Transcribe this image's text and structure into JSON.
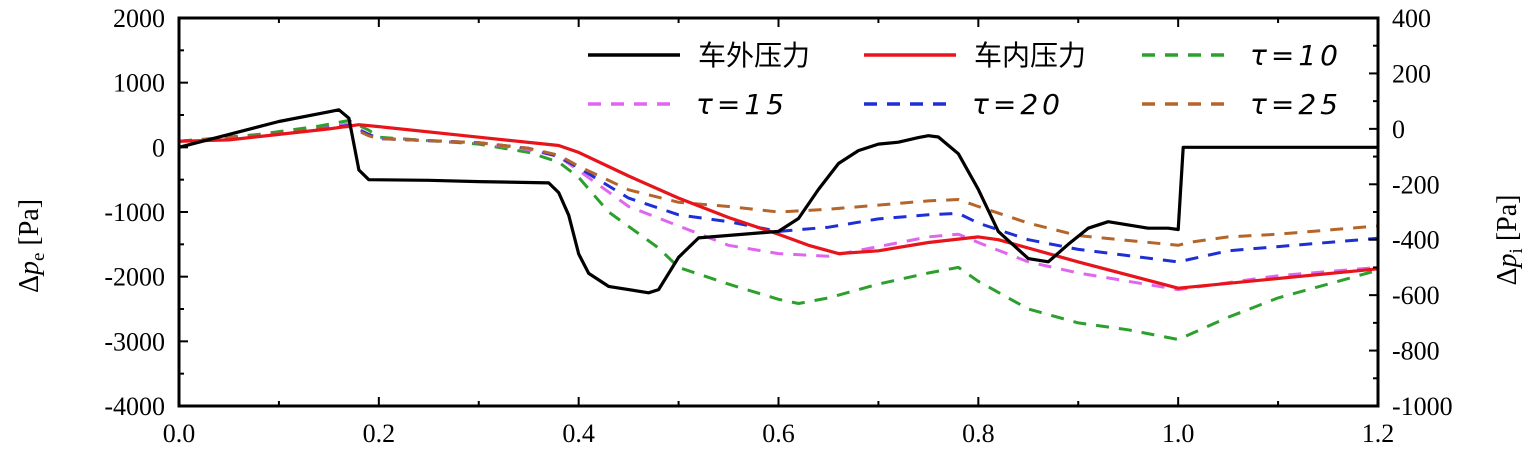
{
  "chart_data": {
    "type": "line",
    "xlim": [
      0.0,
      1.2
    ],
    "ylim_left": [
      -4000,
      2000
    ],
    "ylim_right": [
      -1000,
      400
    ],
    "x_ticks": [
      "0.0",
      "0.2",
      "0.4",
      "0.6",
      "0.8",
      "1.0",
      "1.2"
    ],
    "y_left_ticks": [
      "2000",
      "1000",
      "0",
      "-1000",
      "-2000",
      "-3000",
      "-4000"
    ],
    "y_right_ticks": [
      "400",
      "200",
      "0",
      "-200",
      "-400",
      "-600",
      "-800",
      "-1000"
    ],
    "ylabel_left": "Δpe [Pa]",
    "ylabel_right": "Δpi [Pa]",
    "legend_position": "top-right",
    "grid": false,
    "series": [
      {
        "name": "车外压力",
        "axis": "left",
        "color": "#000000",
        "dash": "solid",
        "points": [
          [
            0.0,
            0
          ],
          [
            0.05,
            200
          ],
          [
            0.1,
            400
          ],
          [
            0.15,
            550
          ],
          [
            0.16,
            580
          ],
          [
            0.17,
            450
          ],
          [
            0.18,
            -350
          ],
          [
            0.19,
            -500
          ],
          [
            0.25,
            -510
          ],
          [
            0.3,
            -530
          ],
          [
            0.37,
            -550
          ],
          [
            0.38,
            -700
          ],
          [
            0.39,
            -1050
          ],
          [
            0.4,
            -1650
          ],
          [
            0.41,
            -1950
          ],
          [
            0.43,
            -2150
          ],
          [
            0.47,
            -2250
          ],
          [
            0.48,
            -2200
          ],
          [
            0.5,
            -1700
          ],
          [
            0.52,
            -1400
          ],
          [
            0.6,
            -1300
          ],
          [
            0.62,
            -1100
          ],
          [
            0.64,
            -650
          ],
          [
            0.66,
            -250
          ],
          [
            0.68,
            -50
          ],
          [
            0.7,
            50
          ],
          [
            0.72,
            80
          ],
          [
            0.74,
            150
          ],
          [
            0.75,
            180
          ],
          [
            0.76,
            160
          ],
          [
            0.78,
            -100
          ],
          [
            0.8,
            -650
          ],
          [
            0.82,
            -1300
          ],
          [
            0.85,
            -1720
          ],
          [
            0.87,
            -1770
          ],
          [
            0.89,
            -1500
          ],
          [
            0.91,
            -1250
          ],
          [
            0.93,
            -1150
          ],
          [
            0.95,
            -1200
          ],
          [
            0.97,
            -1250
          ],
          [
            0.99,
            -1250
          ],
          [
            1.0,
            -1270
          ],
          [
            1.005,
            0
          ],
          [
            1.2,
            0
          ]
        ]
      },
      {
        "name": "车内压力",
        "axis": "right",
        "color": "#e8141b",
        "dash": "solid",
        "points": [
          [
            0.0,
            -45
          ],
          [
            0.05,
            -40
          ],
          [
            0.1,
            -20
          ],
          [
            0.15,
            0
          ],
          [
            0.18,
            15
          ],
          [
            0.2,
            8
          ],
          [
            0.3,
            -30
          ],
          [
            0.38,
            -60
          ],
          [
            0.4,
            -85
          ],
          [
            0.45,
            -170
          ],
          [
            0.5,
            -250
          ],
          [
            0.55,
            -320
          ],
          [
            0.6,
            -380
          ],
          [
            0.63,
            -420
          ],
          [
            0.66,
            -450
          ],
          [
            0.7,
            -440
          ],
          [
            0.75,
            -410
          ],
          [
            0.8,
            -390
          ],
          [
            0.82,
            -400
          ],
          [
            0.9,
            -480
          ],
          [
            1.0,
            -575
          ],
          [
            1.2,
            -505
          ]
        ]
      },
      {
        "name": "τ=10",
        "axis": "right",
        "color": "#2ca02c",
        "dash": "dashed",
        "points": [
          [
            0.0,
            -45
          ],
          [
            0.08,
            -20
          ],
          [
            0.14,
            10
          ],
          [
            0.17,
            30
          ],
          [
            0.19,
            -5
          ],
          [
            0.2,
            -30
          ],
          [
            0.3,
            -55
          ],
          [
            0.35,
            -85
          ],
          [
            0.38,
            -120
          ],
          [
            0.4,
            -175
          ],
          [
            0.43,
            -300
          ],
          [
            0.48,
            -430
          ],
          [
            0.5,
            -500
          ],
          [
            0.55,
            -560
          ],
          [
            0.6,
            -615
          ],
          [
            0.62,
            -630
          ],
          [
            0.65,
            -610
          ],
          [
            0.7,
            -560
          ],
          [
            0.75,
            -520
          ],
          [
            0.78,
            -500
          ],
          [
            0.8,
            -550
          ],
          [
            0.85,
            -650
          ],
          [
            0.9,
            -700
          ],
          [
            0.95,
            -725
          ],
          [
            1.0,
            -760
          ],
          [
            1.05,
            -680
          ],
          [
            1.1,
            -610
          ],
          [
            1.15,
            -560
          ],
          [
            1.2,
            -510
          ]
        ]
      },
      {
        "name": "τ=15",
        "axis": "right",
        "color": "#e066ef",
        "dash": "dashed",
        "points": [
          [
            0.0,
            -45
          ],
          [
            0.08,
            -25
          ],
          [
            0.14,
            0
          ],
          [
            0.17,
            18
          ],
          [
            0.19,
            -20
          ],
          [
            0.2,
            -35
          ],
          [
            0.3,
            -50
          ],
          [
            0.35,
            -75
          ],
          [
            0.38,
            -100
          ],
          [
            0.4,
            -150
          ],
          [
            0.45,
            -280
          ],
          [
            0.5,
            -350
          ],
          [
            0.55,
            -420
          ],
          [
            0.6,
            -450
          ],
          [
            0.65,
            -460
          ],
          [
            0.7,
            -425
          ],
          [
            0.75,
            -390
          ],
          [
            0.78,
            -380
          ],
          [
            0.8,
            -410
          ],
          [
            0.85,
            -480
          ],
          [
            0.9,
            -520
          ],
          [
            1.0,
            -580
          ],
          [
            1.05,
            -555
          ],
          [
            1.1,
            -530
          ],
          [
            1.2,
            -500
          ]
        ]
      },
      {
        "name": "τ=20",
        "axis": "right",
        "color": "#1e2fd6",
        "dash": "dashed",
        "points": [
          [
            0.0,
            -45
          ],
          [
            0.08,
            -25
          ],
          [
            0.14,
            0
          ],
          [
            0.17,
            12
          ],
          [
            0.19,
            -20
          ],
          [
            0.2,
            -35
          ],
          [
            0.3,
            -50
          ],
          [
            0.35,
            -70
          ],
          [
            0.38,
            -100
          ],
          [
            0.4,
            -140
          ],
          [
            0.45,
            -250
          ],
          [
            0.5,
            -310
          ],
          [
            0.55,
            -335
          ],
          [
            0.6,
            -370
          ],
          [
            0.65,
            -355
          ],
          [
            0.7,
            -325
          ],
          [
            0.75,
            -310
          ],
          [
            0.78,
            -305
          ],
          [
            0.8,
            -340
          ],
          [
            0.85,
            -400
          ],
          [
            0.9,
            -435
          ],
          [
            1.0,
            -480
          ],
          [
            1.05,
            -440
          ],
          [
            1.1,
            -425
          ],
          [
            1.2,
            -395
          ]
        ]
      },
      {
        "name": "τ=25",
        "axis": "right",
        "color": "#b5652a",
        "dash": "dashed",
        "points": [
          [
            0.0,
            -45
          ],
          [
            0.08,
            -25
          ],
          [
            0.14,
            0
          ],
          [
            0.17,
            8
          ],
          [
            0.19,
            -25
          ],
          [
            0.2,
            -35
          ],
          [
            0.3,
            -50
          ],
          [
            0.35,
            -70
          ],
          [
            0.38,
            -95
          ],
          [
            0.4,
            -135
          ],
          [
            0.45,
            -220
          ],
          [
            0.5,
            -265
          ],
          [
            0.55,
            -280
          ],
          [
            0.6,
            -300
          ],
          [
            0.65,
            -290
          ],
          [
            0.7,
            -275
          ],
          [
            0.75,
            -260
          ],
          [
            0.78,
            -255
          ],
          [
            0.8,
            -280
          ],
          [
            0.85,
            -340
          ],
          [
            0.9,
            -385
          ],
          [
            1.0,
            -420
          ],
          [
            1.01,
            -410
          ],
          [
            1.05,
            -390
          ],
          [
            1.1,
            -380
          ],
          [
            1.2,
            -350
          ]
        ]
      }
    ]
  }
}
